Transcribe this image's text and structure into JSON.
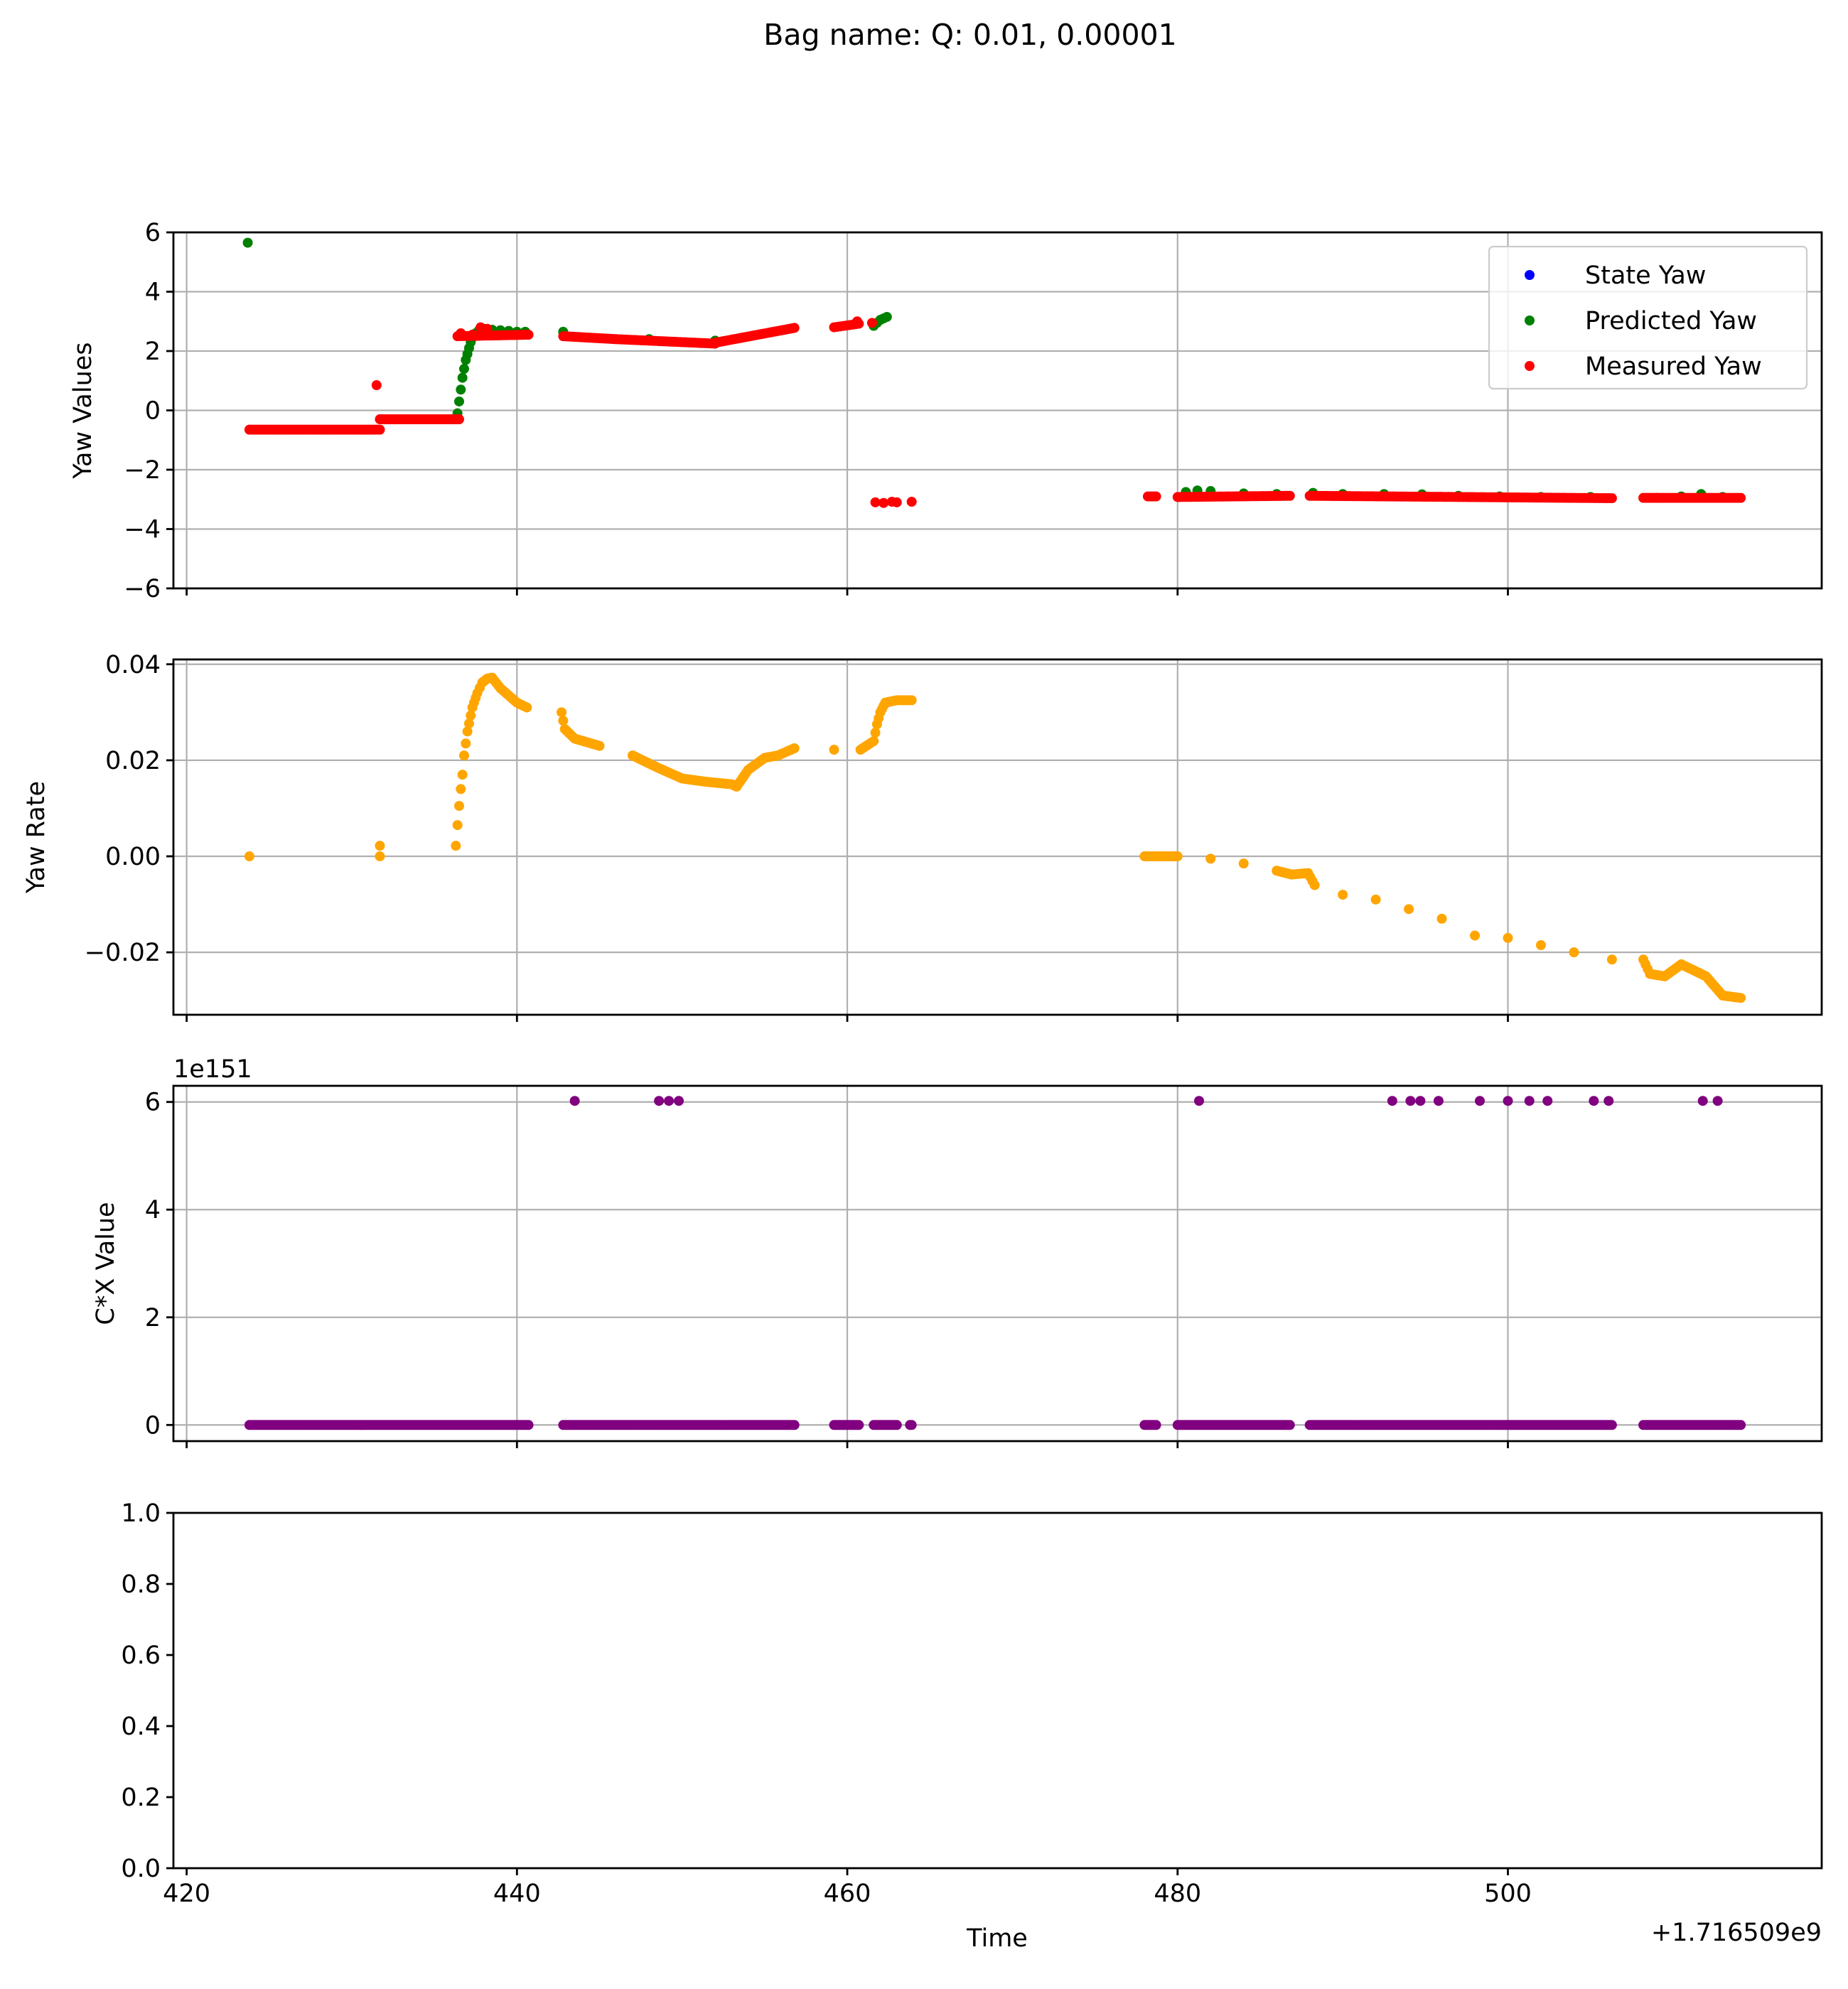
{
  "figure": {
    "title": "Bag name: Q: 0.01, 0.00001"
  },
  "chart_data": [
    {
      "type": "scatter",
      "name": "yaw-values",
      "ylabel": "Yaw Values",
      "ylim": [
        -6,
        6
      ],
      "yticks": [
        6,
        4,
        2,
        0,
        -2,
        -4,
        -6
      ],
      "ytick_labels": [
        "6",
        "4",
        "2",
        "0",
        "−2",
        "−4",
        "−6"
      ],
      "xlim": [
        419.2,
        519.0
      ],
      "xticks": [
        420,
        440,
        460,
        480,
        500
      ],
      "grid": true,
      "legend_position": "top-right",
      "series": [
        {
          "name": "State Yaw",
          "color": "#0000ff",
          "points": []
        },
        {
          "name": "Predicted Yaw",
          "color": "#008000",
          "points": [
            [
              423.7,
              5.65
            ],
            [
              436.4,
              -0.1
            ],
            [
              436.5,
              0.3
            ],
            [
              436.6,
              0.7
            ],
            [
              436.7,
              1.1
            ],
            [
              436.8,
              1.4
            ],
            [
              436.9,
              1.7
            ],
            [
              437.0,
              1.9
            ],
            [
              437.1,
              2.1
            ],
            [
              437.2,
              2.3
            ],
            [
              437.3,
              2.45
            ],
            [
              437.5,
              2.6
            ],
            [
              437.7,
              2.7
            ],
            [
              438.0,
              2.75
            ],
            [
              438.5,
              2.72
            ],
            [
              439.0,
              2.7
            ],
            [
              439.5,
              2.68
            ],
            [
              440.0,
              2.65
            ],
            [
              440.5,
              2.65
            ],
            [
              442.8,
              2.65
            ],
            [
              448.0,
              2.4
            ],
            [
              452.0,
              2.35
            ],
            [
              461.6,
              2.85
            ],
            [
              461.8,
              2.95
            ],
            [
              462.0,
              3.05
            ],
            [
              462.2,
              3.1
            ],
            [
              462.4,
              3.15
            ],
            [
              480.5,
              -2.75
            ],
            [
              481.2,
              -2.7
            ],
            [
              482.0,
              -2.72
            ],
            [
              484.0,
              -2.8
            ],
            [
              486.0,
              -2.82
            ],
            [
              488.2,
              -2.78
            ],
            [
              490.0,
              -2.82
            ],
            [
              492.5,
              -2.82
            ],
            [
              494.8,
              -2.83
            ],
            [
              497.0,
              -2.88
            ],
            [
              499.5,
              -2.9
            ],
            [
              502.0,
              -2.92
            ],
            [
              505.0,
              -2.92
            ],
            [
              509.0,
              -2.95
            ],
            [
              510.5,
              -2.9
            ],
            [
              511.7,
              -2.82
            ],
            [
              513.0,
              -2.92
            ]
          ]
        },
        {
          "name": "Measured Yaw",
          "color": "#ff0000",
          "segments": [
            {
              "x0": 423.8,
              "x1": 431.7,
              "y0": -0.65,
              "y1": -0.65,
              "n": 60
            },
            {
              "x0": 431.7,
              "x1": 436.5,
              "y0": -0.3,
              "y1": -0.3,
              "n": 40
            },
            {
              "x0": 436.4,
              "x1": 440.7,
              "y0": 2.5,
              "y1": 2.55,
              "n": 30
            },
            {
              "x0": 442.8,
              "x1": 446.0,
              "y0": 2.5,
              "y1": 2.4,
              "n": 25
            },
            {
              "x0": 446.0,
              "x1": 452.0,
              "y0": 2.4,
              "y1": 2.25,
              "n": 40
            },
            {
              "x0": 452.0,
              "x1": 456.8,
              "y0": 2.28,
              "y1": 2.78,
              "n": 35
            },
            {
              "x0": 459.2,
              "x1": 460.7,
              "y0": 2.8,
              "y1": 2.92,
              "n": 8
            },
            {
              "x0": 478.2,
              "x1": 478.7,
              "y0": -2.9,
              "y1": -2.9,
              "n": 4
            },
            {
              "x0": 480.0,
              "x1": 486.8,
              "y0": -2.92,
              "y1": -2.88,
              "n": 50
            },
            {
              "x0": 488.0,
              "x1": 506.3,
              "y0": -2.88,
              "y1": -2.96,
              "n": 120
            },
            {
              "x0": 508.2,
              "x1": 514.1,
              "y0": -2.95,
              "y1": -2.95,
              "n": 40
            }
          ],
          "points": [
            [
              431.5,
              0.85
            ],
            [
              436.6,
              2.6
            ],
            [
              437.3,
              2.55
            ],
            [
              437.8,
              2.8
            ],
            [
              438.2,
              2.75
            ],
            [
              461.5,
              2.95
            ],
            [
              460.6,
              3.0
            ],
            [
              461.7,
              -3.1
            ],
            [
              462.2,
              -3.12
            ],
            [
              462.7,
              -3.08
            ],
            [
              463.0,
              -3.1
            ],
            [
              463.9,
              -3.08
            ]
          ]
        }
      ]
    },
    {
      "type": "scatter",
      "name": "yaw-rate",
      "ylabel": "Yaw Rate",
      "ylim": [
        -0.033,
        0.041
      ],
      "yticks": [
        0.04,
        0.02,
        0.0,
        -0.02
      ],
      "ytick_labels": [
        "0.04",
        "0.02",
        "0.00",
        "−0.02"
      ],
      "xlim": [
        419.2,
        519.0
      ],
      "xticks": [
        420,
        440,
        460,
        480,
        500
      ],
      "grid": true,
      "series": [
        {
          "name": "",
          "color": "#ffa500",
          "curve": [
            [
              423.8,
              0.0
            ],
            [
              431.7,
              0.0
            ],
            [
              431.7,
              0.0022
            ],
            [
              436.3,
              0.0022
            ],
            [
              436.4,
              0.0065
            ],
            [
              436.5,
              0.0105
            ],
            [
              436.6,
              0.014
            ],
            [
              436.7,
              0.017
            ],
            [
              436.8,
              0.021
            ],
            [
              437.0,
              0.026
            ],
            [
              437.3,
              0.031
            ],
            [
              437.6,
              0.034
            ],
            [
              437.9,
              0.0362
            ],
            [
              438.2,
              0.037
            ],
            [
              438.5,
              0.0372
            ],
            [
              439.0,
              0.035
            ],
            [
              439.5,
              0.0335
            ],
            [
              440.0,
              0.032
            ],
            [
              440.6,
              0.031
            ],
            [
              442.7,
              0.03
            ],
            [
              442.9,
              0.0265
            ],
            [
              443.5,
              0.0245
            ],
            [
              445.0,
              0.023
            ],
            [
              447.0,
              0.021
            ],
            [
              448.5,
              0.0185
            ],
            [
              450.0,
              0.0162
            ],
            [
              451.5,
              0.0155
            ],
            [
              453.0,
              0.015
            ],
            [
              453.3,
              0.0145
            ],
            [
              454.0,
              0.018
            ],
            [
              455.0,
              0.0205
            ],
            [
              455.8,
              0.021
            ],
            [
              456.8,
              0.0225
            ],
            [
              459.2,
              0.0222
            ],
            [
              460.8,
              0.0222
            ],
            [
              461.6,
              0.024
            ],
            [
              461.8,
              0.0275
            ],
            [
              462.0,
              0.03
            ],
            [
              462.3,
              0.032
            ],
            [
              463.0,
              0.0325
            ],
            [
              463.9,
              0.0325
            ],
            [
              478.0,
              0.0
            ],
            [
              478.7,
              0.0
            ],
            [
              480.0,
              0.0
            ],
            [
              482.0,
              -0.0005
            ],
            [
              484.0,
              -0.0015
            ],
            [
              486.0,
              -0.003
            ],
            [
              486.9,
              -0.0038
            ],
            [
              487.9,
              -0.0035
            ],
            [
              488.3,
              -0.006
            ],
            [
              490.0,
              -0.008
            ],
            [
              492.0,
              -0.009
            ],
            [
              494.0,
              -0.011
            ],
            [
              496.0,
              -0.013
            ],
            [
              498.0,
              -0.0165
            ],
            [
              500.0,
              -0.017
            ],
            [
              502.0,
              -0.0185
            ],
            [
              504.0,
              -0.02
            ],
            [
              506.3,
              -0.0215
            ],
            [
              508.2,
              -0.0215
            ],
            [
              508.6,
              -0.0245
            ],
            [
              509.5,
              -0.025
            ],
            [
              510.5,
              -0.0225
            ],
            [
              512.0,
              -0.025
            ],
            [
              513.0,
              -0.029
            ],
            [
              514.1,
              -0.0295
            ]
          ]
        }
      ]
    },
    {
      "type": "scatter",
      "name": "cx-value",
      "ylabel": "C*X Value",
      "offset_label": "1e151",
      "ylim": [
        -0.3,
        6.3
      ],
      "yticks": [
        6,
        4,
        2,
        0
      ],
      "ytick_labels": [
        "6",
        "4",
        "2",
        "0"
      ],
      "xlim": [
        419.2,
        519.0
      ],
      "xticks": [
        420,
        440,
        460,
        480,
        500
      ],
      "grid": true,
      "series": [
        {
          "name": "",
          "color": "#800080",
          "zero_ranges": [
            [
              423.8,
              440.7
            ],
            [
              442.8,
              456.8
            ],
            [
              459.2,
              460.7
            ],
            [
              461.6,
              463.0
            ],
            [
              463.8,
              463.9
            ],
            [
              478.0,
              478.7
            ],
            [
              480.0,
              486.8
            ],
            [
              488.0,
              506.3
            ],
            [
              508.2,
              514.1
            ]
          ],
          "high_points": [
            443.5,
            448.6,
            449.2,
            449.8,
            481.3,
            493.0,
            494.1,
            494.7,
            495.8,
            498.3,
            500.0,
            501.3,
            502.4,
            505.2,
            506.1,
            511.8,
            512.7
          ],
          "high_value": 6.02
        }
      ]
    },
    {
      "type": "scatter",
      "name": "empty-axes",
      "ylim": [
        0.0,
        1.0
      ],
      "yticks": [
        1.0,
        0.8,
        0.6,
        0.4,
        0.2,
        0.0
      ],
      "ytick_labels": [
        "1.0",
        "0.8",
        "0.6",
        "0.4",
        "0.2",
        "0.0"
      ],
      "xlim": [
        419.2,
        519.0
      ],
      "xticks": [
        420,
        440,
        460,
        480,
        500
      ],
      "xtick_labels": [
        "420",
        "440",
        "460",
        "480",
        "500"
      ],
      "xlabel": "Time",
      "x_offset_label": "+1.716509e9",
      "grid": false,
      "series": []
    }
  ]
}
